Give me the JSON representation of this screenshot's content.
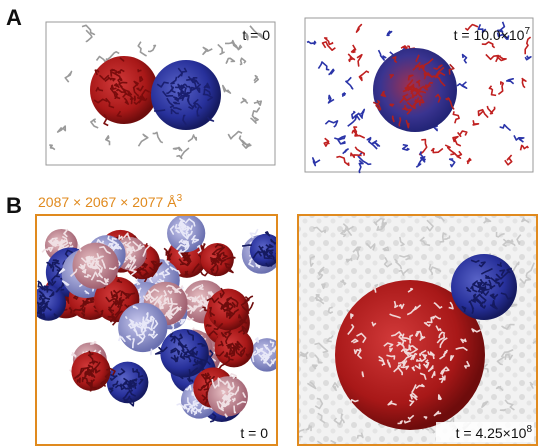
{
  "panels": [
    {
      "label": "A",
      "images": [
        {
          "time": "t = 0"
        },
        {
          "time": "t = 10.0×10",
          "time_exponent": "7"
        }
      ]
    },
    {
      "label": "B",
      "box_size": "2087 × 2067 × 2077 Å",
      "box_size_exponent": "3",
      "images": [
        {
          "time": "t = 0"
        },
        {
          "time": "t = 4.25×10",
          "time_exponent": "8"
        }
      ]
    }
  ]
}
